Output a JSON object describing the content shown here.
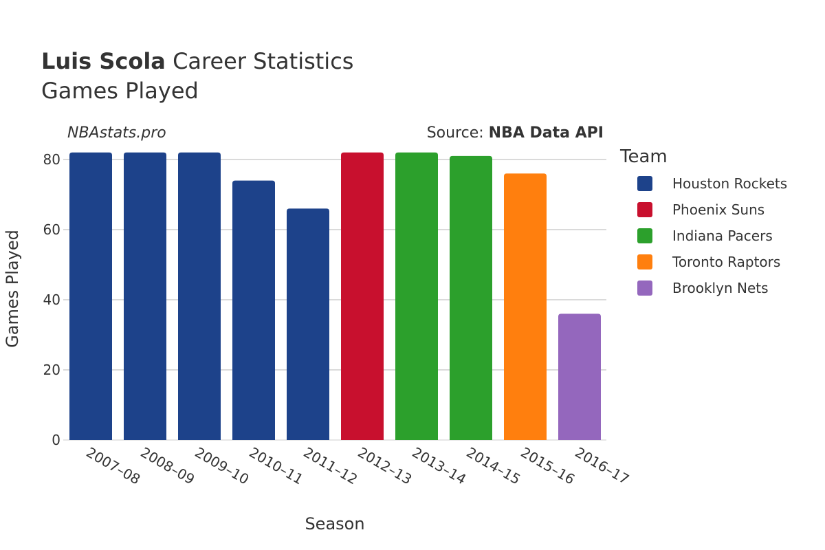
{
  "header": {
    "player_name": "Luis Scola",
    "title_rest": " Career Statistics",
    "subtitle": "Games Played",
    "watermark": "NBAstats.pro",
    "source_prefix": "Source: ",
    "source_name": "NBA Data API"
  },
  "legend": {
    "title": "Team",
    "placement": "right"
  },
  "chart_data": {
    "type": "bar",
    "title": "Luis Scola Career Statistics",
    "subtitle": "Games Played",
    "xlabel": "Season",
    "ylabel": "Games Played",
    "ylim": [
      0,
      84
    ],
    "yticks": [
      0,
      20,
      40,
      60,
      80
    ],
    "grid": true,
    "categories": [
      "2007–08",
      "2008–09",
      "2009–10",
      "2010–11",
      "2011–12",
      "2012–13",
      "2013–14",
      "2014–15",
      "2015–16",
      "2016–17"
    ],
    "values": [
      82,
      82,
      82,
      74,
      66,
      82,
      82,
      81,
      76,
      36
    ],
    "teams": [
      "Houston Rockets",
      "Houston Rockets",
      "Houston Rockets",
      "Houston Rockets",
      "Houston Rockets",
      "Phoenix Suns",
      "Indiana Pacers",
      "Indiana Pacers",
      "Toronto Raptors",
      "Brooklyn Nets"
    ],
    "series": [
      {
        "name": "Houston Rockets",
        "color": "#1d428a"
      },
      {
        "name": "Phoenix Suns",
        "color": "#c8102e"
      },
      {
        "name": "Indiana Pacers",
        "color": "#2ca02c"
      },
      {
        "name": "Toronto Raptors",
        "color": "#ff7f0e"
      },
      {
        "name": "Brooklyn Nets",
        "color": "#9467bd"
      }
    ]
  }
}
